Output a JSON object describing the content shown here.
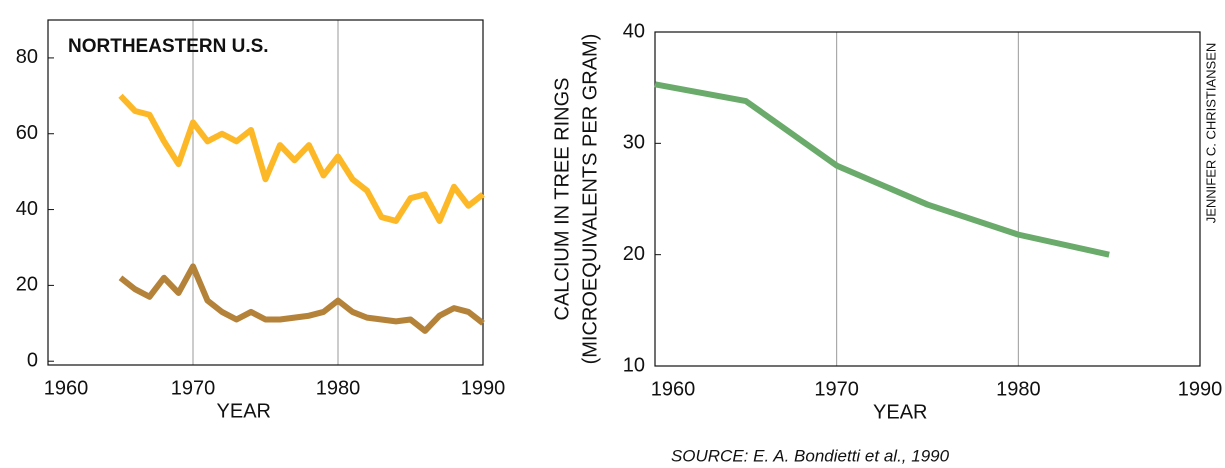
{
  "chart_data": [
    {
      "type": "line",
      "title": "NORTHEASTERN U.S.",
      "xlabel": "YEAR",
      "x": [
        1965,
        1966,
        1967,
        1968,
        1969,
        1970,
        1971,
        1972,
        1973,
        1974,
        1975,
        1976,
        1977,
        1978,
        1979,
        1980,
        1981,
        1982,
        1983,
        1984,
        1985,
        1986,
        1987,
        1988,
        1989,
        1990
      ],
      "series": [
        {
          "color": "#fdb827",
          "values": [
            70,
            66,
            65,
            58,
            52,
            63,
            58,
            60,
            58,
            61,
            48,
            57,
            53,
            57,
            49,
            54,
            48,
            45,
            38,
            37,
            43,
            44,
            37,
            46,
            41,
            44
          ]
        },
        {
          "color": "#b5823a",
          "values": [
            22,
            19,
            17,
            22,
            18,
            25,
            16,
            13,
            11,
            13,
            11,
            11,
            11.5,
            12,
            13,
            16,
            13,
            11.5,
            11,
            10.5,
            11,
            8,
            12,
            14,
            13,
            10
          ]
        }
      ],
      "xlim": [
        1960,
        1990
      ],
      "xticks": [
        1960,
        1970,
        1980,
        1990
      ],
      "ylim": [
        -1,
        90
      ],
      "yticks": [
        0,
        20,
        40,
        60,
        80
      ],
      "grid": true
    },
    {
      "type": "line",
      "xlabel": "YEAR",
      "ylabel": [
        "CALCIUM IN TREE RINGS",
        "(MICROEQUIVALENTS PER GRAM)"
      ],
      "x": [
        1960,
        1965,
        1970,
        1975,
        1980,
        1985
      ],
      "series": [
        {
          "color": "#6aaa6a",
          "values": [
            35.3,
            33.8,
            28,
            24.5,
            21.8,
            20
          ]
        }
      ],
      "xlim": [
        1960,
        1990
      ],
      "xticks": [
        1960,
        1970,
        1980,
        1990
      ],
      "ylim": [
        10,
        40
      ],
      "yticks": [
        10,
        20,
        30,
        40
      ],
      "grid": true
    }
  ],
  "credit": "JENNIFER C. CHRISTIANSEN",
  "source": "SOURCE: E. A. Bondietti et al., 1990"
}
